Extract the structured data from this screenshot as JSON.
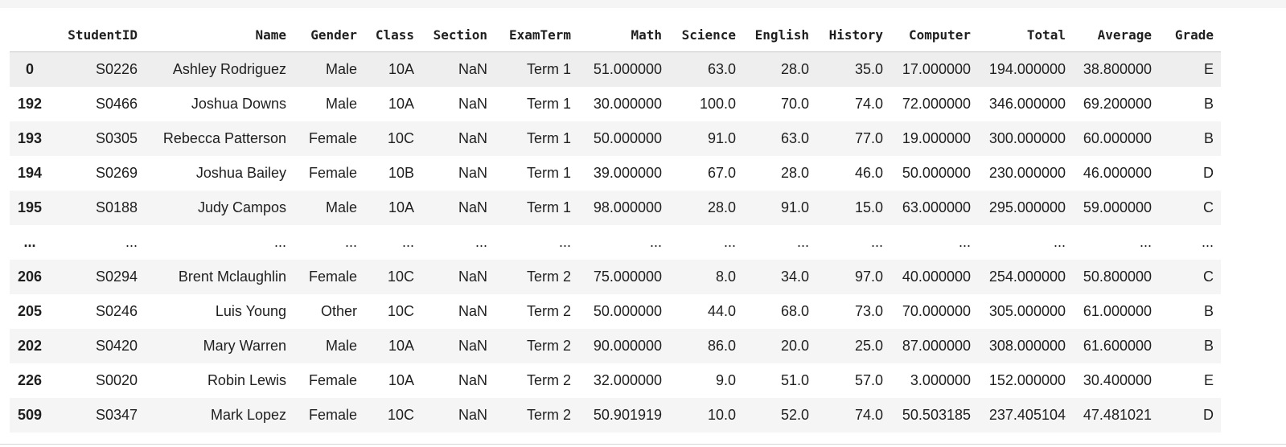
{
  "dataframe": {
    "index_header": "",
    "columns": [
      "StudentID",
      "Name",
      "Gender",
      "Class",
      "Section",
      "ExamTerm",
      "Math",
      "Science",
      "English",
      "History",
      "Computer",
      "Total",
      "Average",
      "Grade"
    ],
    "rows": [
      {
        "index": "0",
        "cells": [
          "S0226",
          "Ashley Rodriguez",
          "Male",
          "10A",
          "NaN",
          "Term 1",
          "51.000000",
          "63.0",
          "28.0",
          "35.0",
          "17.000000",
          "194.000000",
          "38.800000",
          "E"
        ]
      },
      {
        "index": "192",
        "cells": [
          "S0466",
          "Joshua Downs",
          "Male",
          "10A",
          "NaN",
          "Term 1",
          "30.000000",
          "100.0",
          "70.0",
          "74.0",
          "72.000000",
          "346.000000",
          "69.200000",
          "B"
        ]
      },
      {
        "index": "193",
        "cells": [
          "S0305",
          "Rebecca Patterson",
          "Female",
          "10C",
          "NaN",
          "Term 1",
          "50.000000",
          "91.0",
          "63.0",
          "77.0",
          "19.000000",
          "300.000000",
          "60.000000",
          "B"
        ]
      },
      {
        "index": "194",
        "cells": [
          "S0269",
          "Joshua Bailey",
          "Female",
          "10B",
          "NaN",
          "Term 1",
          "39.000000",
          "67.0",
          "28.0",
          "46.0",
          "50.000000",
          "230.000000",
          "46.000000",
          "D"
        ]
      },
      {
        "index": "195",
        "cells": [
          "S0188",
          "Judy Campos",
          "Male",
          "10A",
          "NaN",
          "Term 1",
          "98.000000",
          "28.0",
          "91.0",
          "15.0",
          "63.000000",
          "295.000000",
          "59.000000",
          "C"
        ]
      },
      {
        "index": "...",
        "cells": [
          "...",
          "...",
          "...",
          "...",
          "...",
          "...",
          "...",
          "...",
          "...",
          "...",
          "...",
          "...",
          "...",
          "..."
        ]
      },
      {
        "index": "206",
        "cells": [
          "S0294",
          "Brent Mclaughlin",
          "Female",
          "10C",
          "NaN",
          "Term 2",
          "75.000000",
          "8.0",
          "34.0",
          "97.0",
          "40.000000",
          "254.000000",
          "50.800000",
          "C"
        ]
      },
      {
        "index": "205",
        "cells": [
          "S0246",
          "Luis Young",
          "Other",
          "10C",
          "NaN",
          "Term 2",
          "50.000000",
          "44.0",
          "68.0",
          "73.0",
          "70.000000",
          "305.000000",
          "61.000000",
          "B"
        ]
      },
      {
        "index": "202",
        "cells": [
          "S0420",
          "Mary Warren",
          "Male",
          "10A",
          "NaN",
          "Term 2",
          "90.000000",
          "86.0",
          "20.0",
          "25.0",
          "87.000000",
          "308.000000",
          "61.600000",
          "B"
        ]
      },
      {
        "index": "226",
        "cells": [
          "S0020",
          "Robin Lewis",
          "Female",
          "10A",
          "NaN",
          "Term 2",
          "32.000000",
          "9.0",
          "51.0",
          "57.0",
          "3.000000",
          "152.000000",
          "30.400000",
          "E"
        ]
      },
      {
        "index": "509",
        "cells": [
          "S0347",
          "Mark Lopez",
          "Female",
          "10C",
          "NaN",
          "Term 2",
          "50.901919",
          "10.0",
          "52.0",
          "74.0",
          "50.503185",
          "237.405104",
          "47.481021",
          "D"
        ]
      }
    ]
  }
}
